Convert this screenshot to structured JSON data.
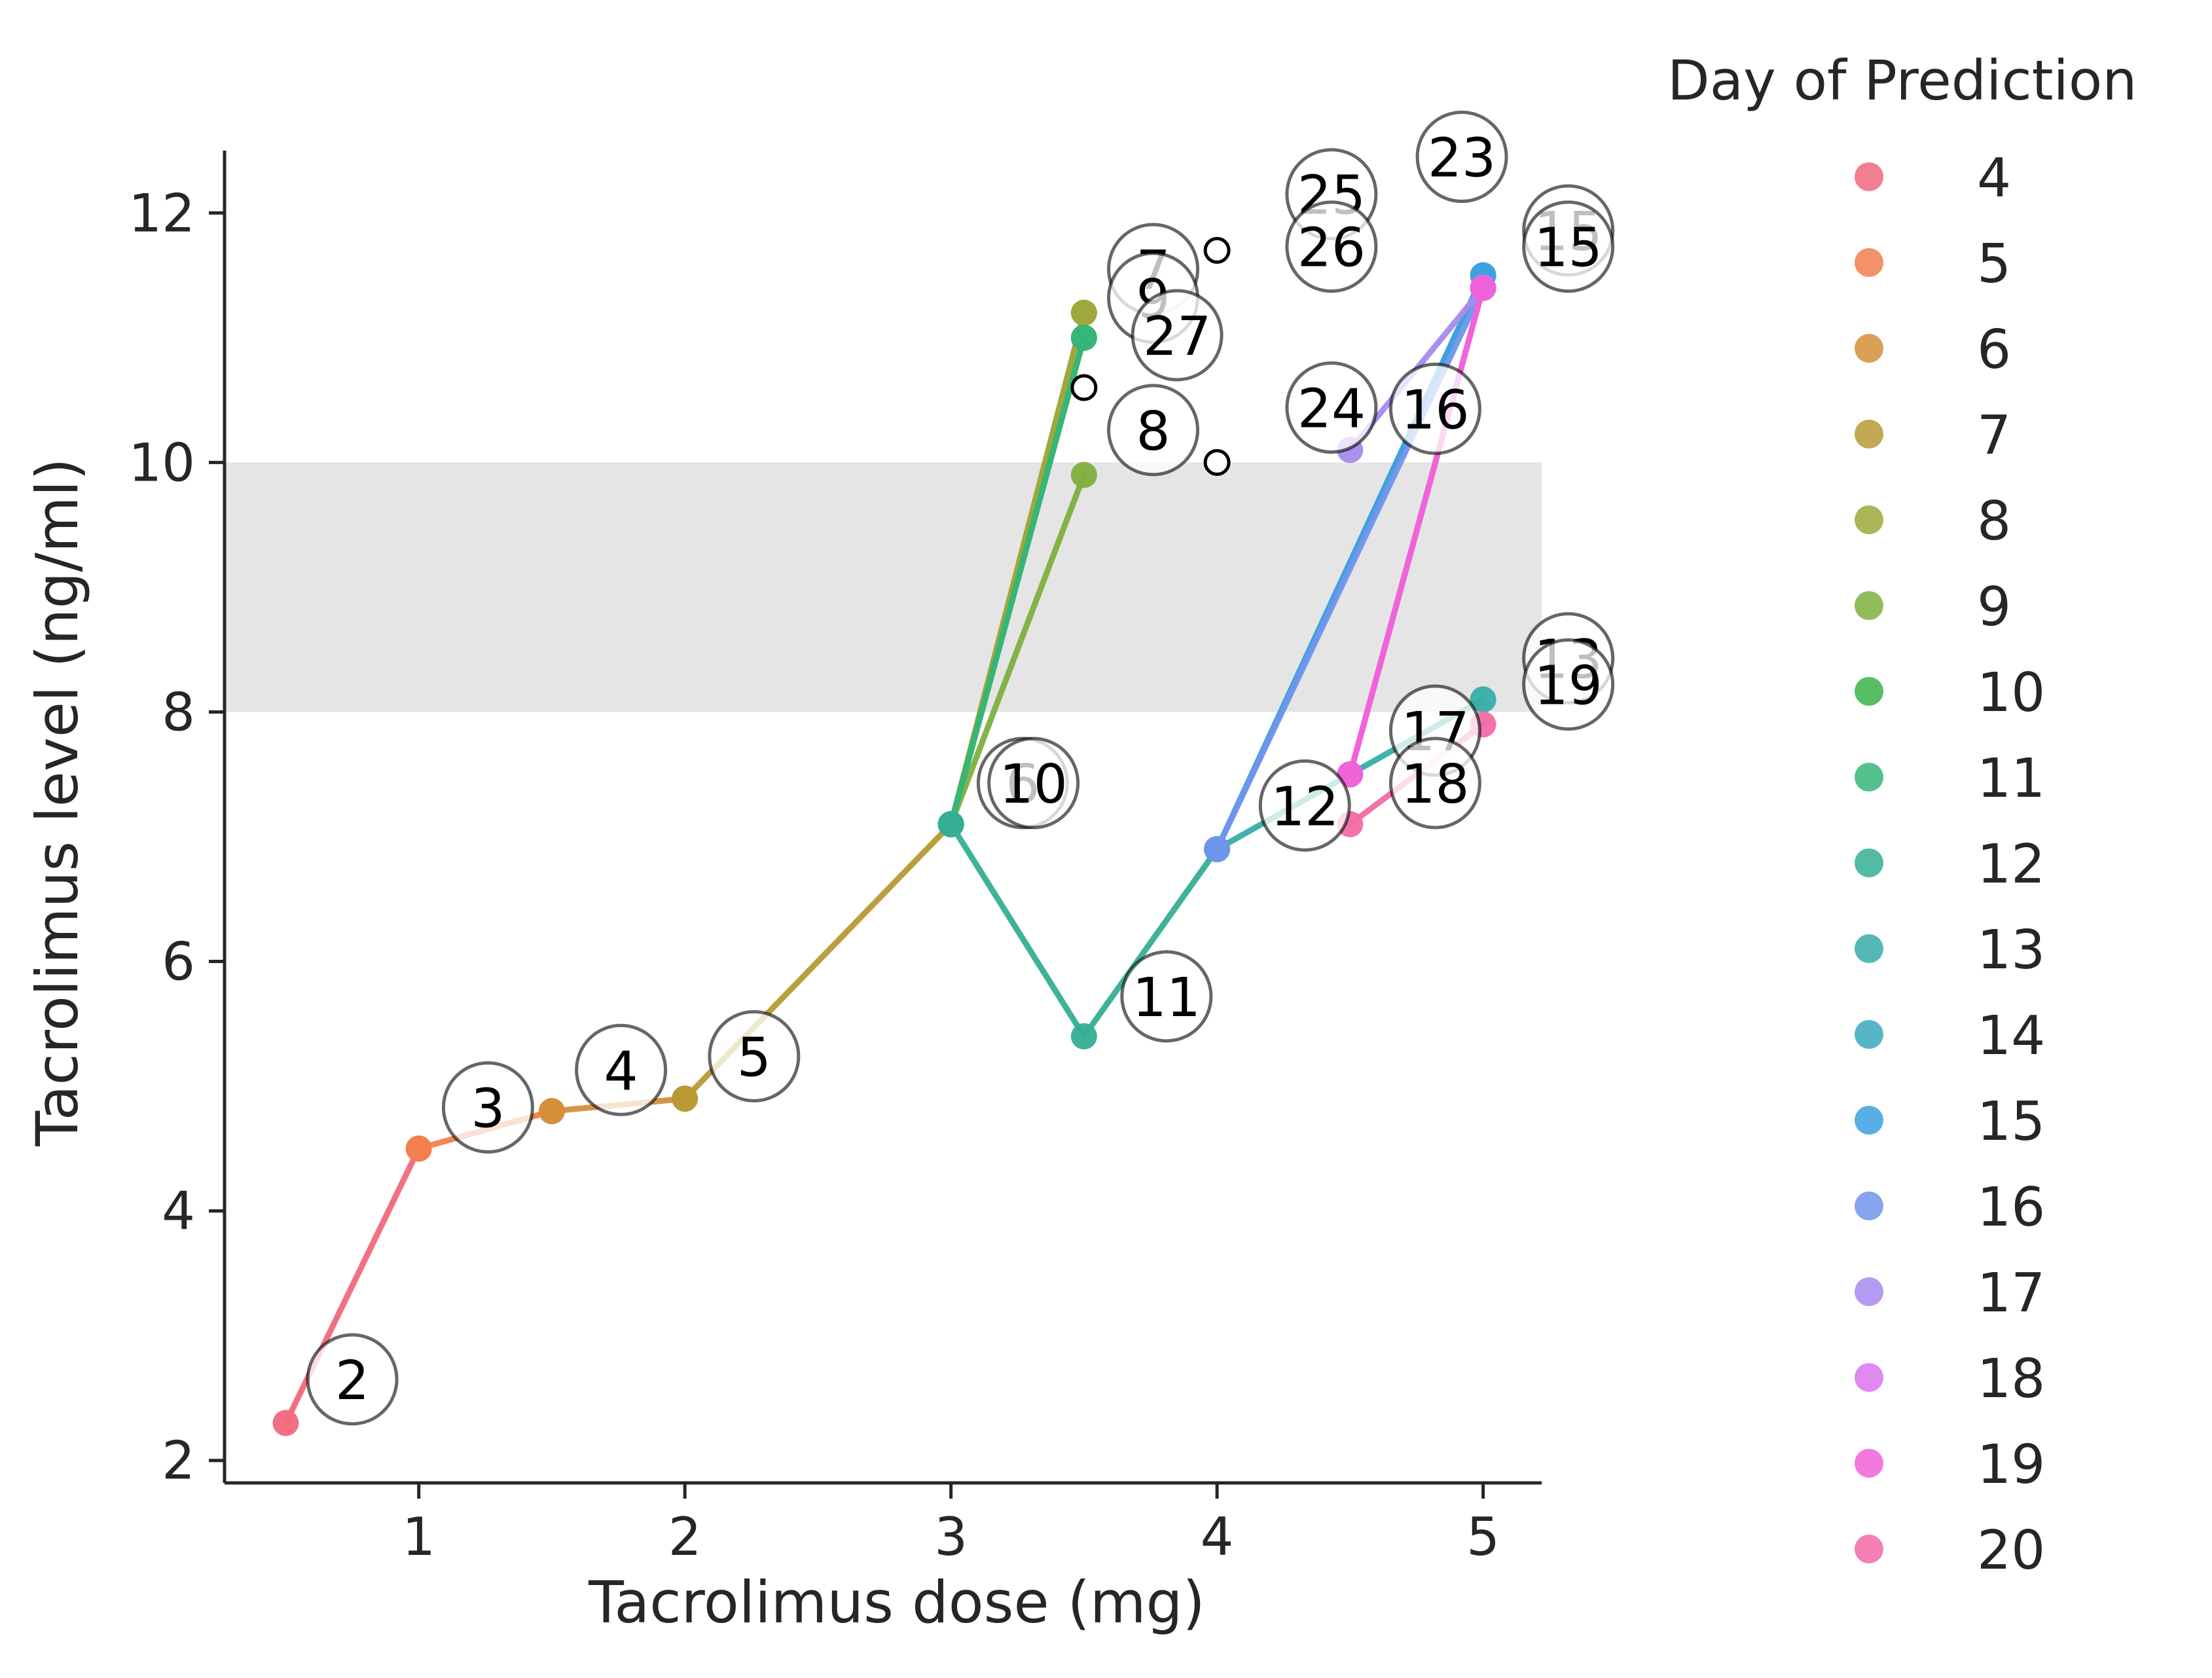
{
  "chart_data": {
    "type": "line",
    "xlabel": "Tacrolimus dose (mg)",
    "ylabel": "Tacrolimus level (ng/ml)",
    "xlim": [
      0.27,
      5.22
    ],
    "ylim": [
      1.82,
      12.5
    ],
    "xticks": [
      1,
      2,
      3,
      4,
      5
    ],
    "yticks": [
      2,
      4,
      6,
      8,
      10,
      12
    ],
    "target_band": [
      8,
      10
    ],
    "grid": false,
    "legend": {
      "title": "Day of Prediction",
      "placement": "outside-right",
      "entries": [
        "4",
        "5",
        "6",
        "7",
        "8",
        "9",
        "10",
        "11",
        "12",
        "13",
        "14",
        "15",
        "16",
        "17",
        "18",
        "19",
        "20"
      ]
    },
    "series": [
      {
        "name": "4",
        "color": "#f0697c",
        "points": [
          [
            0.5,
            2.3
          ],
          [
            1.0,
            4.5
          ]
        ]
      },
      {
        "name": "5",
        "color": "#f27f4c",
        "points": [
          [
            1.0,
            4.5
          ],
          [
            1.5,
            4.8
          ]
        ]
      },
      {
        "name": "6",
        "color": "#d48f3a",
        "points": [
          [
            1.5,
            4.8
          ],
          [
            2.0,
            4.9
          ]
        ]
      },
      {
        "name": "7",
        "color": "#b79a35",
        "points": [
          [
            2.0,
            4.9
          ],
          [
            3.0,
            7.1
          ],
          [
            3.5,
            11.2
          ]
        ]
      },
      {
        "name": "8",
        "color": "#9da93a",
        "points": [
          [
            3.0,
            7.1
          ],
          [
            3.5,
            11.2
          ]
        ]
      },
      {
        "name": "9",
        "color": "#7faf3f",
        "points": [
          [
            3.0,
            7.1
          ],
          [
            3.5,
            9.9
          ]
        ]
      },
      {
        "name": "10",
        "color": "#3ab34a",
        "points": [
          [
            3.0,
            7.1
          ],
          [
            3.5,
            11.0
          ]
        ]
      },
      {
        "name": "11",
        "color": "#36b57a",
        "points": [
          [
            3.0,
            7.1
          ],
          [
            3.5,
            11.0
          ]
        ]
      },
      {
        "name": "12",
        "color": "#35ae95",
        "points": [
          [
            3.0,
            7.1
          ],
          [
            3.5,
            5.4
          ],
          [
            4.0,
            6.9
          ]
        ]
      },
      {
        "name": "13",
        "color": "#36ada8",
        "points": [
          [
            4.0,
            6.9
          ],
          [
            5.0,
            8.1
          ]
        ]
      },
      {
        "name": "14",
        "color": "#38a9be",
        "points": [
          [
            4.0,
            6.9
          ],
          [
            5.0,
            11.5
          ]
        ]
      },
      {
        "name": "15",
        "color": "#3ca1e0",
        "points": [
          [
            4.0,
            6.9
          ],
          [
            5.0,
            11.5
          ]
        ]
      },
      {
        "name": "16",
        "color": "#7195ec",
        "points": [
          [
            4.0,
            6.9
          ],
          [
            5.0,
            11.4
          ]
        ]
      },
      {
        "name": "17",
        "color": "#a78aee",
        "points": [
          [
            4.5,
            10.1
          ],
          [
            5.0,
            11.4
          ]
        ]
      },
      {
        "name": "18",
        "color": "#db74ef",
        "points": [
          [
            4.5,
            7.5
          ],
          [
            5.0,
            11.4
          ]
        ]
      },
      {
        "name": "19",
        "color": "#f062d8",
        "points": [
          [
            4.5,
            7.5
          ],
          [
            5.0,
            11.4
          ]
        ]
      },
      {
        "name": "20",
        "color": "#f36aa8",
        "points": [
          [
            4.5,
            7.1
          ],
          [
            5.0,
            7.9
          ]
        ]
      }
    ],
    "open_markers": [
      {
        "x": 3.5,
        "y": 10.6
      },
      {
        "x": 4.0,
        "y": 11.7
      },
      {
        "x": 4.0,
        "y": 10.0
      }
    ],
    "annotations": [
      {
        "label": "2",
        "x": 0.75,
        "y": 2.65
      },
      {
        "label": "3",
        "x": 1.26,
        "y": 4.83
      },
      {
        "label": "4",
        "x": 1.76,
        "y": 5.13
      },
      {
        "label": "5",
        "x": 2.26,
        "y": 5.24
      },
      {
        "label": "6",
        "x": 3.27,
        "y": 7.43
      },
      {
        "label": "10",
        "x": 3.31,
        "y": 7.43
      },
      {
        "label": "7",
        "x": 3.76,
        "y": 11.55
      },
      {
        "label": "9",
        "x": 3.76,
        "y": 11.32
      },
      {
        "label": "27",
        "x": 3.85,
        "y": 11.02
      },
      {
        "label": "8",
        "x": 3.76,
        "y": 10.26
      },
      {
        "label": "11",
        "x": 3.81,
        "y": 5.72
      },
      {
        "label": "25",
        "x": 4.43,
        "y": 12.15
      },
      {
        "label": "26",
        "x": 4.43,
        "y": 11.73
      },
      {
        "label": "24",
        "x": 4.43,
        "y": 10.44
      },
      {
        "label": "23",
        "x": 4.92,
        "y": 12.45
      },
      {
        "label": "12",
        "x": 4.33,
        "y": 7.25
      },
      {
        "label": "16",
        "x": 4.82,
        "y": 10.43
      },
      {
        "label": "17",
        "x": 4.82,
        "y": 7.85
      },
      {
        "label": "18",
        "x": 4.82,
        "y": 7.43
      },
      {
        "label": "15",
        "x": 5.32,
        "y": 11.86
      },
      {
        "label": "15",
        "x": 5.32,
        "y": 11.73
      },
      {
        "label": "13",
        "x": 5.32,
        "y": 8.43
      },
      {
        "label": "19",
        "x": 5.32,
        "y": 8.22
      }
    ]
  }
}
